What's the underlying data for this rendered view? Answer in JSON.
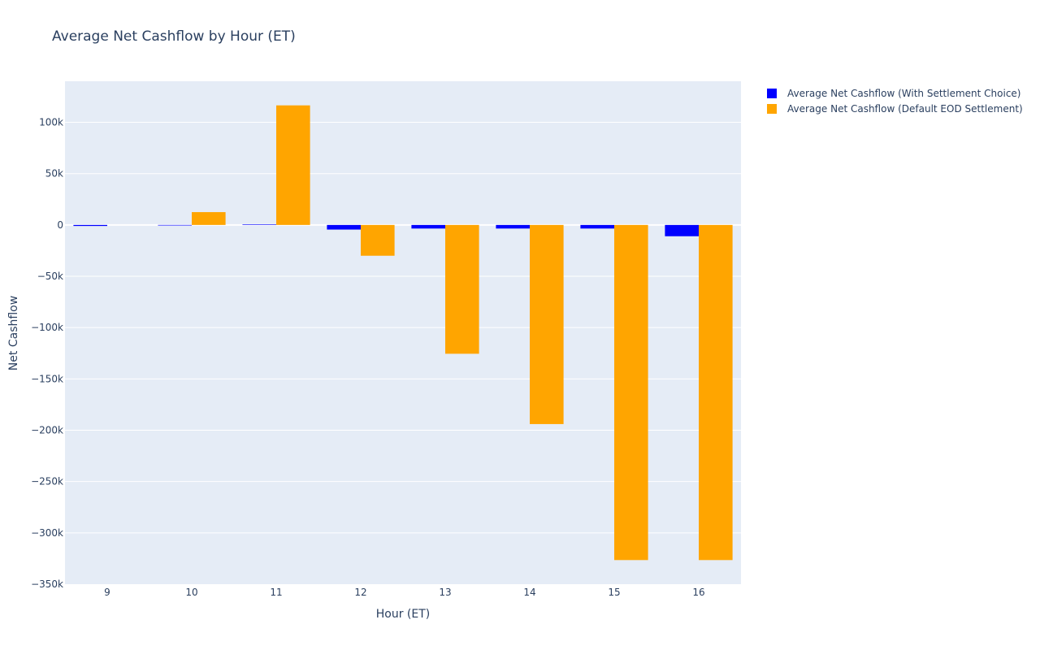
{
  "colors": {
    "plot_bg": "#e5ecf6",
    "grid": "#ffffff",
    "text": "#2a3f5f"
  },
  "chart_data": {
    "type": "bar",
    "title": "Average Net Cashflow by Hour (ET)",
    "xlabel": "Hour (ET)",
    "ylabel": "Net Cashflow",
    "categories": [
      "9",
      "10",
      "11",
      "12",
      "13",
      "14",
      "15",
      "16"
    ],
    "ylim": [
      -350000,
      140000
    ],
    "yticks": [
      100000,
      50000,
      0,
      -50000,
      -100000,
      -150000,
      -200000,
      -250000,
      -300000,
      -350000
    ],
    "ytick_labels": [
      "100k",
      "50k",
      "0",
      "−50k",
      "−100k",
      "−150k",
      "−200k",
      "−250k",
      "−300k",
      "−350k"
    ],
    "grid": true,
    "legend_position": "top-right outside",
    "series": [
      {
        "name": "Average Net Cashflow (With Settlement Choice)",
        "color": "#0000ff",
        "values": [
          -1000,
          -500,
          500,
          -4500,
          -3500,
          -3500,
          -3500,
          -11000
        ]
      },
      {
        "name": "Average Net Cashflow (Default EOD Settlement)",
        "color": "#ffa500",
        "values": [
          0,
          12500,
          116500,
          -30000,
          -125500,
          -194000,
          -326500,
          -326500
        ]
      }
    ]
  }
}
